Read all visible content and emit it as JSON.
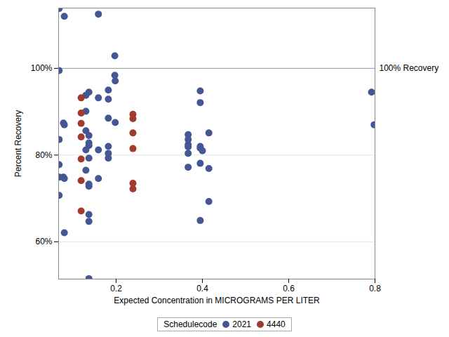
{
  "chart_data": {
    "type": "scatter",
    "x_label": "Expected Concentration in MICROGRAMS PER LITER",
    "y_label": "Percent Recovery",
    "xlim": [
      0.0667,
      0.8
    ],
    "xticks": [
      0.2,
      0.4,
      0.6,
      0.8
    ],
    "ylim": [
      51.4,
      113.9
    ],
    "yticks": [
      {
        "value": 60,
        "label": "60%"
      },
      {
        "value": 80,
        "label": "80%"
      },
      {
        "value": 100,
        "label": "100%"
      }
    ],
    "grid": true,
    "legend": "bottom",
    "legend_title": "Schedulecode",
    "marker": "circle",
    "annotations": [
      {
        "y": 100,
        "text": "100% Recovery"
      }
    ],
    "series": [
      {
        "name": "2021",
        "color": "#445694",
        "x": [
          0.068,
          0.08,
          0.068,
          0.068,
          0.078,
          0.08,
          0.068,
          0.068,
          0.078,
          0.08,
          0.068,
          0.08,
          0.159,
          0.197,
          0.197,
          0.198,
          0.13,
          0.137,
          0.159,
          0.182,
          0.182,
          0.13,
          0.182,
          0.198,
          0.13,
          0.137,
          0.137,
          0.137,
          0.182,
          0.13,
          0.159,
          0.182,
          0.182,
          0.137,
          0.13,
          0.137,
          0.137,
          0.159,
          0.137,
          0.137,
          0.137,
          0.367,
          0.367,
          0.367,
          0.367,
          0.367,
          0.367,
          0.395,
          0.395,
          0.395,
          0.395,
          0.395,
          0.395,
          0.4,
          0.415,
          0.415,
          0.415,
          0.792,
          0.798
        ],
        "values": [
          113.8,
          112.0,
          99.5,
          83.6,
          87.4,
          87.0,
          77.8,
          74.9,
          74.9,
          74.6,
          70.7,
          62.1,
          112.5,
          102.9,
          98.4,
          97.1,
          93.8,
          94.5,
          93.2,
          95.0,
          92.9,
          90.1,
          88.5,
          87.5,
          85.6,
          84.5,
          82.8,
          82.2,
          82.0,
          81.2,
          81.2,
          80.4,
          79.3,
          79.3,
          76.5,
          73.3,
          72.8,
          74.6,
          66.3,
          64.7,
          51.5,
          84.7,
          83.6,
          82.4,
          81.9,
          80.4,
          77.2,
          94.8,
          92.1,
          82.0,
          81.6,
          78.1,
          64.9,
          81.0,
          85.1,
          76.9,
          69.3,
          94.5,
          87.0
        ]
      },
      {
        "name": "4440",
        "color": "#a23a2e",
        "x": [
          0.119,
          0.119,
          0.119,
          0.119,
          0.119,
          0.119,
          0.119,
          0.239,
          0.239,
          0.239,
          0.239,
          0.239,
          0.239
        ],
        "values": [
          93.2,
          89.7,
          87.3,
          84.2,
          79.1,
          74.1,
          67.1,
          89.4,
          88.4,
          85.1,
          81.5,
          73.5,
          72.2
        ]
      }
    ]
  }
}
